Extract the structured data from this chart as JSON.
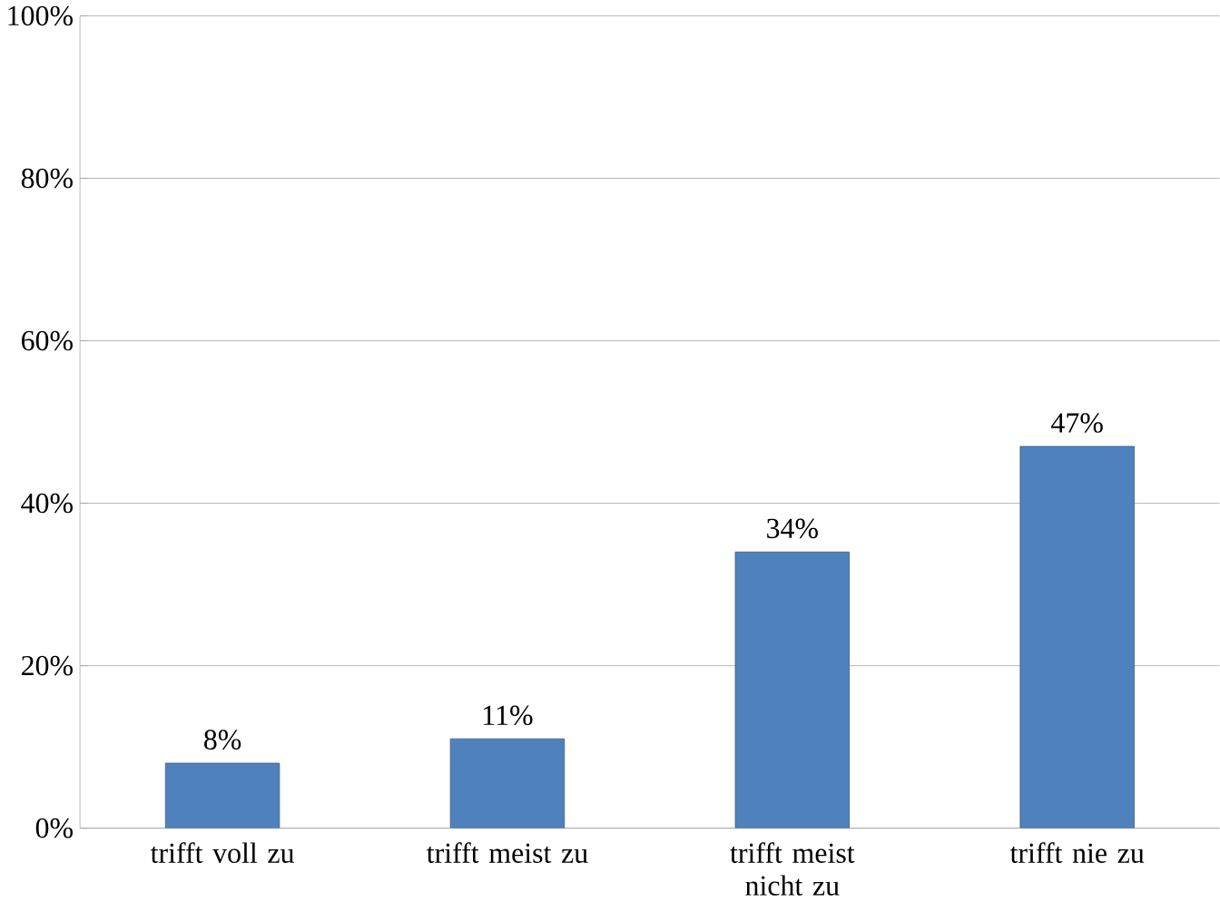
{
  "chart_data": {
    "type": "bar",
    "categories": [
      "trifft voll zu",
      "trifft meist zu",
      "trifft meist nicht zu",
      "trifft nie zu"
    ],
    "values": [
      8,
      11,
      34,
      47
    ],
    "value_labels": [
      "8%",
      "11%",
      "34%",
      "47%"
    ],
    "color": "#4f81bd",
    "ylim": [
      0,
      100
    ],
    "yticks": [
      {
        "value": 0,
        "label": "0%"
      },
      {
        "value": 20,
        "label": "20%"
      },
      {
        "value": 40,
        "label": "40%"
      },
      {
        "value": 60,
        "label": "60%"
      },
      {
        "value": 80,
        "label": "80%"
      },
      {
        "value": 100,
        "label": "100%"
      }
    ],
    "grid": "y"
  }
}
